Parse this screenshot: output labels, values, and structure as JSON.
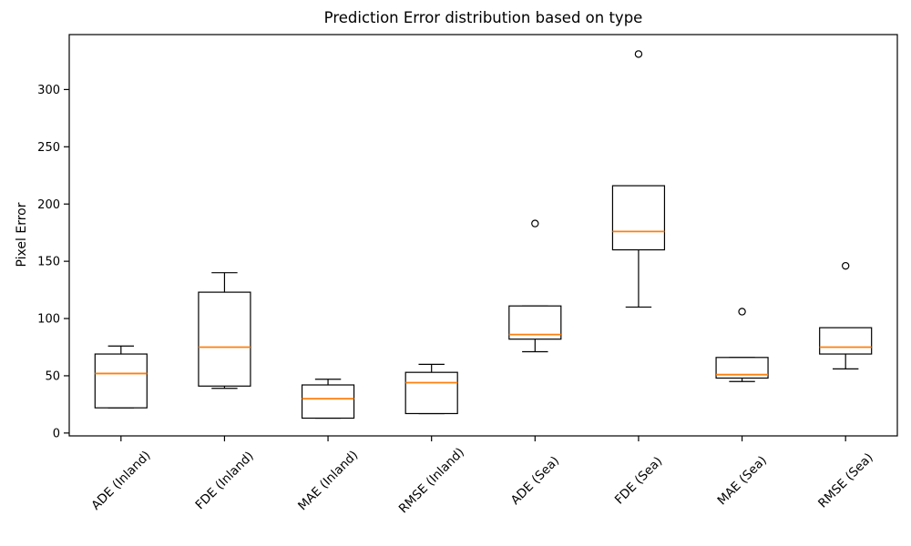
{
  "chart_data": {
    "type": "box",
    "title": "Prediction Error distribution based on type",
    "ylabel": "Pixel Error",
    "xlabel": "",
    "ylim": [
      -2.5,
      348
    ],
    "yticks": [
      0,
      50,
      100,
      150,
      200,
      250,
      300
    ],
    "grid": false,
    "legend": "none",
    "colors": {
      "median": "#ff7f0e",
      "box": "#000000",
      "whisker": "#000000",
      "flier_edge": "#000000",
      "text": "#000000",
      "background": "#ffffff"
    },
    "boxes": [
      {
        "label": "ADE (Inland)",
        "whislo": 22,
        "q1": 22,
        "med": 52,
        "q3": 69,
        "whishi": 76,
        "fliers": []
      },
      {
        "label": "FDE (Inland)",
        "whislo": 39,
        "q1": 41,
        "med": 75,
        "q3": 123,
        "whishi": 140,
        "fliers": []
      },
      {
        "label": "MAE (Inland)",
        "whislo": 13,
        "q1": 13,
        "med": 30,
        "q3": 42,
        "whishi": 47,
        "fliers": []
      },
      {
        "label": "RMSE (Inland)",
        "whislo": 17,
        "q1": 17,
        "med": 44,
        "q3": 53,
        "whishi": 60,
        "fliers": []
      },
      {
        "label": "ADE (Sea)",
        "whislo": 71,
        "q1": 82,
        "med": 86,
        "q3": 111,
        "whishi": 111,
        "fliers": [
          183
        ]
      },
      {
        "label": "FDE (Sea)",
        "whislo": 110,
        "q1": 160,
        "med": 176,
        "q3": 216,
        "whishi": 216,
        "fliers": [
          331
        ]
      },
      {
        "label": "MAE (Sea)",
        "whislo": 45,
        "q1": 48,
        "med": 51,
        "q3": 66,
        "whishi": 66,
        "fliers": [
          106
        ]
      },
      {
        "label": "RMSE (Sea)",
        "whislo": 56,
        "q1": 69,
        "med": 75,
        "q3": 92,
        "whishi": 92,
        "fliers": [
          146
        ]
      }
    ]
  }
}
